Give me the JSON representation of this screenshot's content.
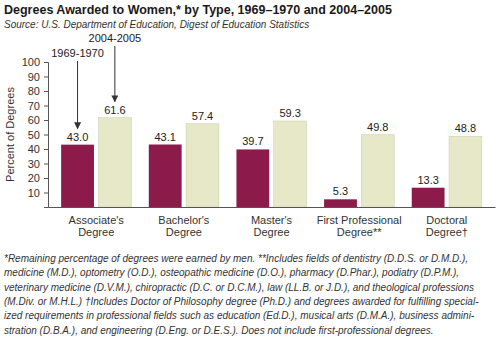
{
  "chart_data": {
    "type": "bar",
    "title": "Degrees Awarded to Women,* by Type, 1969–1970 and 2004–2005",
    "subtitle": "Source: U.S. Department of Education, Digest of Education Statistics",
    "y_label": "Percent of Degrees",
    "categories": [
      "Associate's Degree",
      "Bachelor's Degree",
      "Master's Degree",
      "First Professional Degree**",
      "Doctoral Degree†"
    ],
    "series": [
      {
        "name": "1969-1970",
        "color": "#8c1b4b",
        "values": [
          43.0,
          43.1,
          39.7,
          5.3,
          13.3
        ],
        "value_labels": [
          "43.0",
          "43.1",
          "39.7",
          "5.3",
          "13.3"
        ]
      },
      {
        "name": "2004-2005",
        "color": "#e6e8c8",
        "values": [
          61.6,
          57.4,
          59.3,
          49.8,
          48.8
        ],
        "value_labels": [
          "61.6",
          "57.4",
          "59.3",
          "49.8",
          "48.8"
        ]
      }
    ],
    "ylim": [
      0,
      100
    ],
    "yticks": [
      10,
      20,
      30,
      40,
      50,
      60,
      70,
      80,
      90,
      100
    ],
    "grid": false,
    "data_labels": true,
    "footnote": [
      "*Remaining percentage of degrees were earned by men. **Includes fields of dentistry (D.D.S. or D.M.D.),",
      "medicine (M.D.), optometry (O.D.), osteopathic medicine (D.O.), pharmacy (D.Phar.), podiatry (D.P.M.),",
      "veterinary medicine (D.V.M.), chiropractic (D.C. or D.C.M.), law (LL.B. or J.D.), and theological professions",
      "(M.Div. or M.H.L.) †Includes Doctor of Philosophy degree (Ph.D.) and degrees awarded for fulfilling special-",
      "ized requirements in professional fields such as education (Ed.D.), musical arts (D.M.A.), business admini-",
      "stration (D.B.A.), and engineering (D.Eng. or D.E.S.). Does not include first-professional degrees."
    ]
  }
}
